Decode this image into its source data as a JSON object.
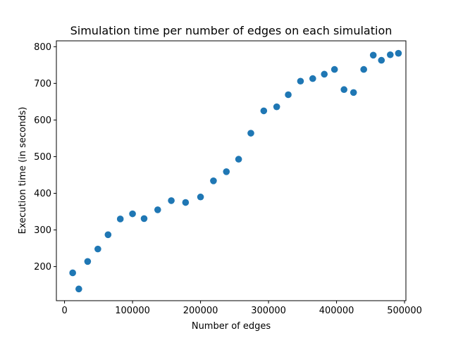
{
  "chart_data": {
    "type": "scatter",
    "title": "Simulation time per number of edges on each simulation",
    "xlabel": "Number of edges",
    "ylabel": "Execution time (in seconds)",
    "xlim": [
      -12000,
      502000
    ],
    "ylim": [
      107,
      816
    ],
    "x_ticks": [
      0,
      100000,
      200000,
      300000,
      400000,
      500000
    ],
    "y_ticks": [
      200,
      300,
      400,
      500,
      600,
      700,
      800
    ],
    "grid": false,
    "marker_color": "#1f77b4",
    "series": [
      {
        "x": [
          12000,
          21000,
          34000,
          49000,
          64000,
          82000,
          100000,
          117000,
          137000,
          157000,
          178000,
          200000,
          219000,
          238000,
          256000,
          274000,
          293000,
          312000,
          329000,
          347000,
          365000,
          382000,
          397000,
          411000,
          425000,
          440000,
          454000,
          466000,
          479000,
          491000
        ],
        "y": [
          183,
          139,
          214,
          248,
          287,
          330,
          344,
          331,
          355,
          380,
          375,
          390,
          434,
          459,
          493,
          564,
          625,
          636,
          669,
          706,
          713,
          725,
          738,
          683,
          675,
          738,
          777,
          763,
          778,
          782
        ]
      }
    ]
  }
}
